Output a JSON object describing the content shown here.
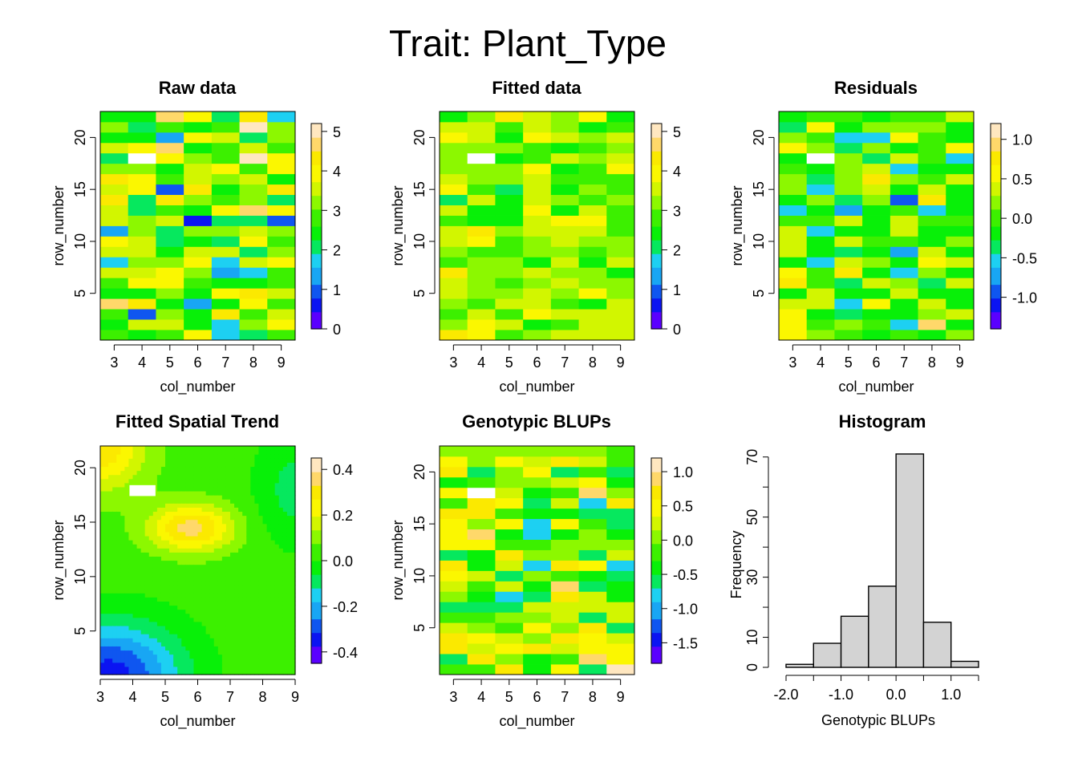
{
  "title": "Trait: Plant_Type",
  "palette": [
    "#5a00ff",
    "#0b14f2",
    "#0f56f0",
    "#18a6f4",
    "#1dd0f2",
    "#06e85e",
    "#08f008",
    "#3cf000",
    "#8cf800",
    "#d2f600",
    "#fbf700",
    "#fbe900",
    "#ffd86a",
    "#ffe7c0"
  ],
  "chart_data": [
    {
      "type": "heatmap",
      "title": "Raw data",
      "xlabel": "col_number",
      "ylabel": "row_number",
      "x_ticks": [
        "3",
        "4",
        "5",
        "6",
        "7",
        "8",
        "9"
      ],
      "y_ticks": [
        "5",
        "10",
        "15",
        "20"
      ],
      "x_range": [
        2.5,
        9.5
      ],
      "y_range": [
        0.5,
        22.5
      ],
      "legend_ticks": [
        "0",
        "1",
        "2",
        "3",
        "4",
        "5"
      ],
      "legend_range": [
        0,
        5.2
      ],
      "missing_cells": [
        [
          4,
          18
        ]
      ],
      "seed": 11,
      "spread": 1.1,
      "center": 3.0
    },
    {
      "type": "heatmap",
      "title": "Fitted data",
      "xlabel": "col_number",
      "ylabel": "row_number",
      "x_ticks": [
        "3",
        "4",
        "5",
        "6",
        "7",
        "8",
        "9"
      ],
      "y_ticks": [
        "5",
        "10",
        "15",
        "20"
      ],
      "x_range": [
        2.5,
        9.5
      ],
      "y_range": [
        0.5,
        22.5
      ],
      "legend_ticks": [
        "0",
        "1",
        "2",
        "3",
        "4",
        "5"
      ],
      "legend_range": [
        0,
        5.2
      ],
      "missing_cells": [
        [
          4,
          18
        ]
      ],
      "seed": 23,
      "spread": 0.6,
      "center": 3.2
    },
    {
      "type": "heatmap",
      "title": "Residuals",
      "xlabel": "col_number",
      "ylabel": "row_number",
      "x_ticks": [
        "3",
        "4",
        "5",
        "6",
        "7",
        "8",
        "9"
      ],
      "y_ticks": [
        "5",
        "10",
        "15",
        "20"
      ],
      "x_range": [
        2.5,
        9.5
      ],
      "y_range": [
        0.5,
        22.5
      ],
      "legend_ticks": [
        "-1.0",
        "-0.5",
        "0.0",
        "0.5",
        "1.0"
      ],
      "legend_tick_values": [
        -1.0,
        -0.5,
        0.0,
        0.5,
        1.0
      ],
      "legend_range": [
        -1.4,
        1.2
      ],
      "missing_cells": [
        [
          4,
          18
        ]
      ],
      "seed": 37,
      "spread": 0.45,
      "center": 0.0
    },
    {
      "type": "heatmap",
      "title": "Fitted Spatial Trend",
      "xlabel": "col_number",
      "ylabel": "row_number",
      "x_ticks": [
        "3",
        "4",
        "5",
        "6",
        "7",
        "8",
        "9"
      ],
      "y_ticks": [
        "5",
        "10",
        "15",
        "20"
      ],
      "x_range": [
        3,
        9
      ],
      "y_range": [
        1,
        22
      ],
      "legend_ticks": [
        "-0.4",
        "-0.2",
        "0.0",
        "0.2",
        "0.4"
      ],
      "legend_tick_values": [
        -0.4,
        -0.2,
        0.0,
        0.2,
        0.4
      ],
      "legend_range": [
        -0.45,
        0.45
      ],
      "smooth": true
    },
    {
      "type": "heatmap",
      "title": "Genotypic BLUPs",
      "xlabel": "col_number",
      "ylabel": "row_number",
      "x_ticks": [
        "3",
        "4",
        "5",
        "6",
        "7",
        "8",
        "9"
      ],
      "y_ticks": [
        "5",
        "10",
        "15",
        "20"
      ],
      "x_range": [
        2.5,
        9.5
      ],
      "y_range": [
        0.5,
        22.5
      ],
      "legend_ticks": [
        "-1.5",
        "-1.0",
        "-0.5",
        "0.0",
        "0.5",
        "1.0"
      ],
      "legend_tick_values": [
        -1.5,
        -1.0,
        -0.5,
        0.0,
        0.5,
        1.0
      ],
      "legend_range": [
        -1.8,
        1.2
      ],
      "missing_cells": [
        [
          4,
          18
        ]
      ],
      "seed": 51,
      "spread": 0.55,
      "center": 0.0
    },
    {
      "type": "bar",
      "title": "Histogram",
      "xlabel": "Genotypic BLUPs",
      "ylabel": "Frequency",
      "bin_edges": [
        -2.0,
        -1.5,
        -1.0,
        -0.5,
        0.0,
        0.5,
        1.0,
        1.5
      ],
      "values": [
        1,
        8,
        17,
        27,
        71,
        15,
        2
      ],
      "x_ticks": [
        "-2.0",
        "-1.0",
        "0.0",
        "1.0"
      ],
      "x_tick_values": [
        -2.0,
        -1.0,
        0.0,
        1.0
      ],
      "y_ticks": [
        "0",
        "10",
        "30",
        "50",
        "70"
      ],
      "y_tick_values": [
        0,
        10,
        30,
        50,
        70
      ],
      "xlim": [
        -2.0,
        1.5
      ],
      "ylim": [
        0,
        71
      ]
    }
  ]
}
